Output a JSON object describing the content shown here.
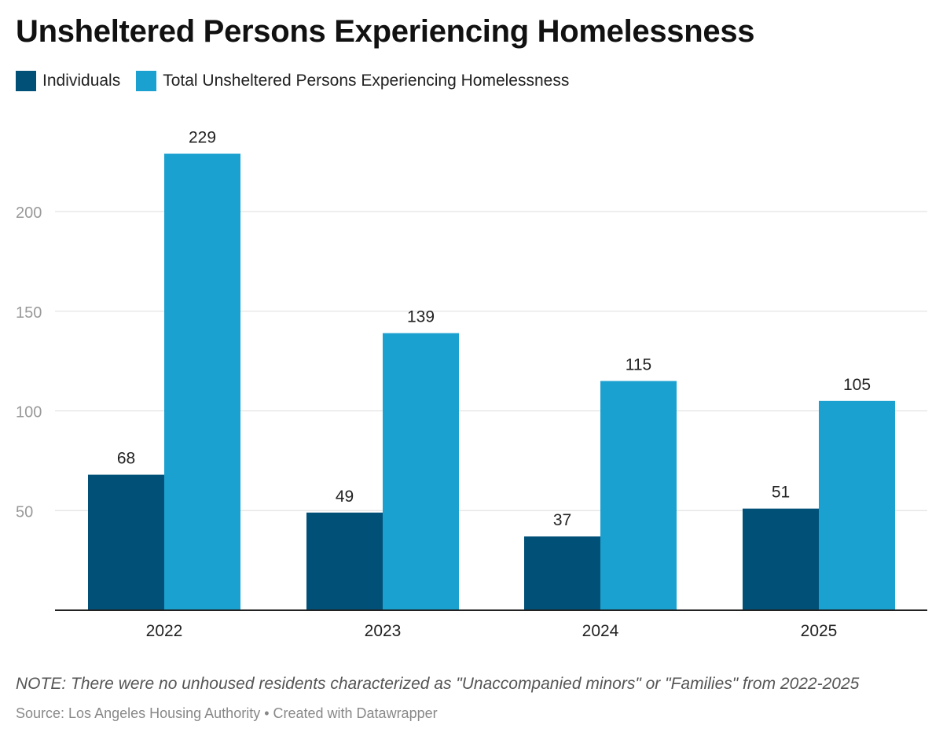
{
  "header": {
    "title": "Unsheltered Persons Experiencing Homelessness"
  },
  "legend": {
    "items": [
      {
        "label": "Individuals",
        "color": "#005078"
      },
      {
        "label": "Total Unsheltered Persons Experiencing Homelessness",
        "color": "#1ba1cf"
      }
    ]
  },
  "chart_data": {
    "type": "bar",
    "categories": [
      "2022",
      "2023",
      "2024",
      "2025"
    ],
    "series": [
      {
        "name": "Individuals",
        "values": [
          68,
          49,
          37,
          51
        ],
        "color": "#005078"
      },
      {
        "name": "Total Unsheltered Persons Experiencing Homelessness",
        "values": [
          229,
          139,
          115,
          105
        ],
        "color": "#1ba1cf"
      }
    ],
    "yticks": [
      50,
      100,
      150,
      200
    ],
    "ylim": [
      0,
      240
    ],
    "grid": true,
    "legend_position": "top-left"
  },
  "footer": {
    "note": "NOTE: There were no unhoused residents characterized as \"Unaccompanied minors\" or \"Families\" from 2022-2025",
    "source": "Source: Los Angeles Housing Authority • Created with Datawrapper"
  }
}
